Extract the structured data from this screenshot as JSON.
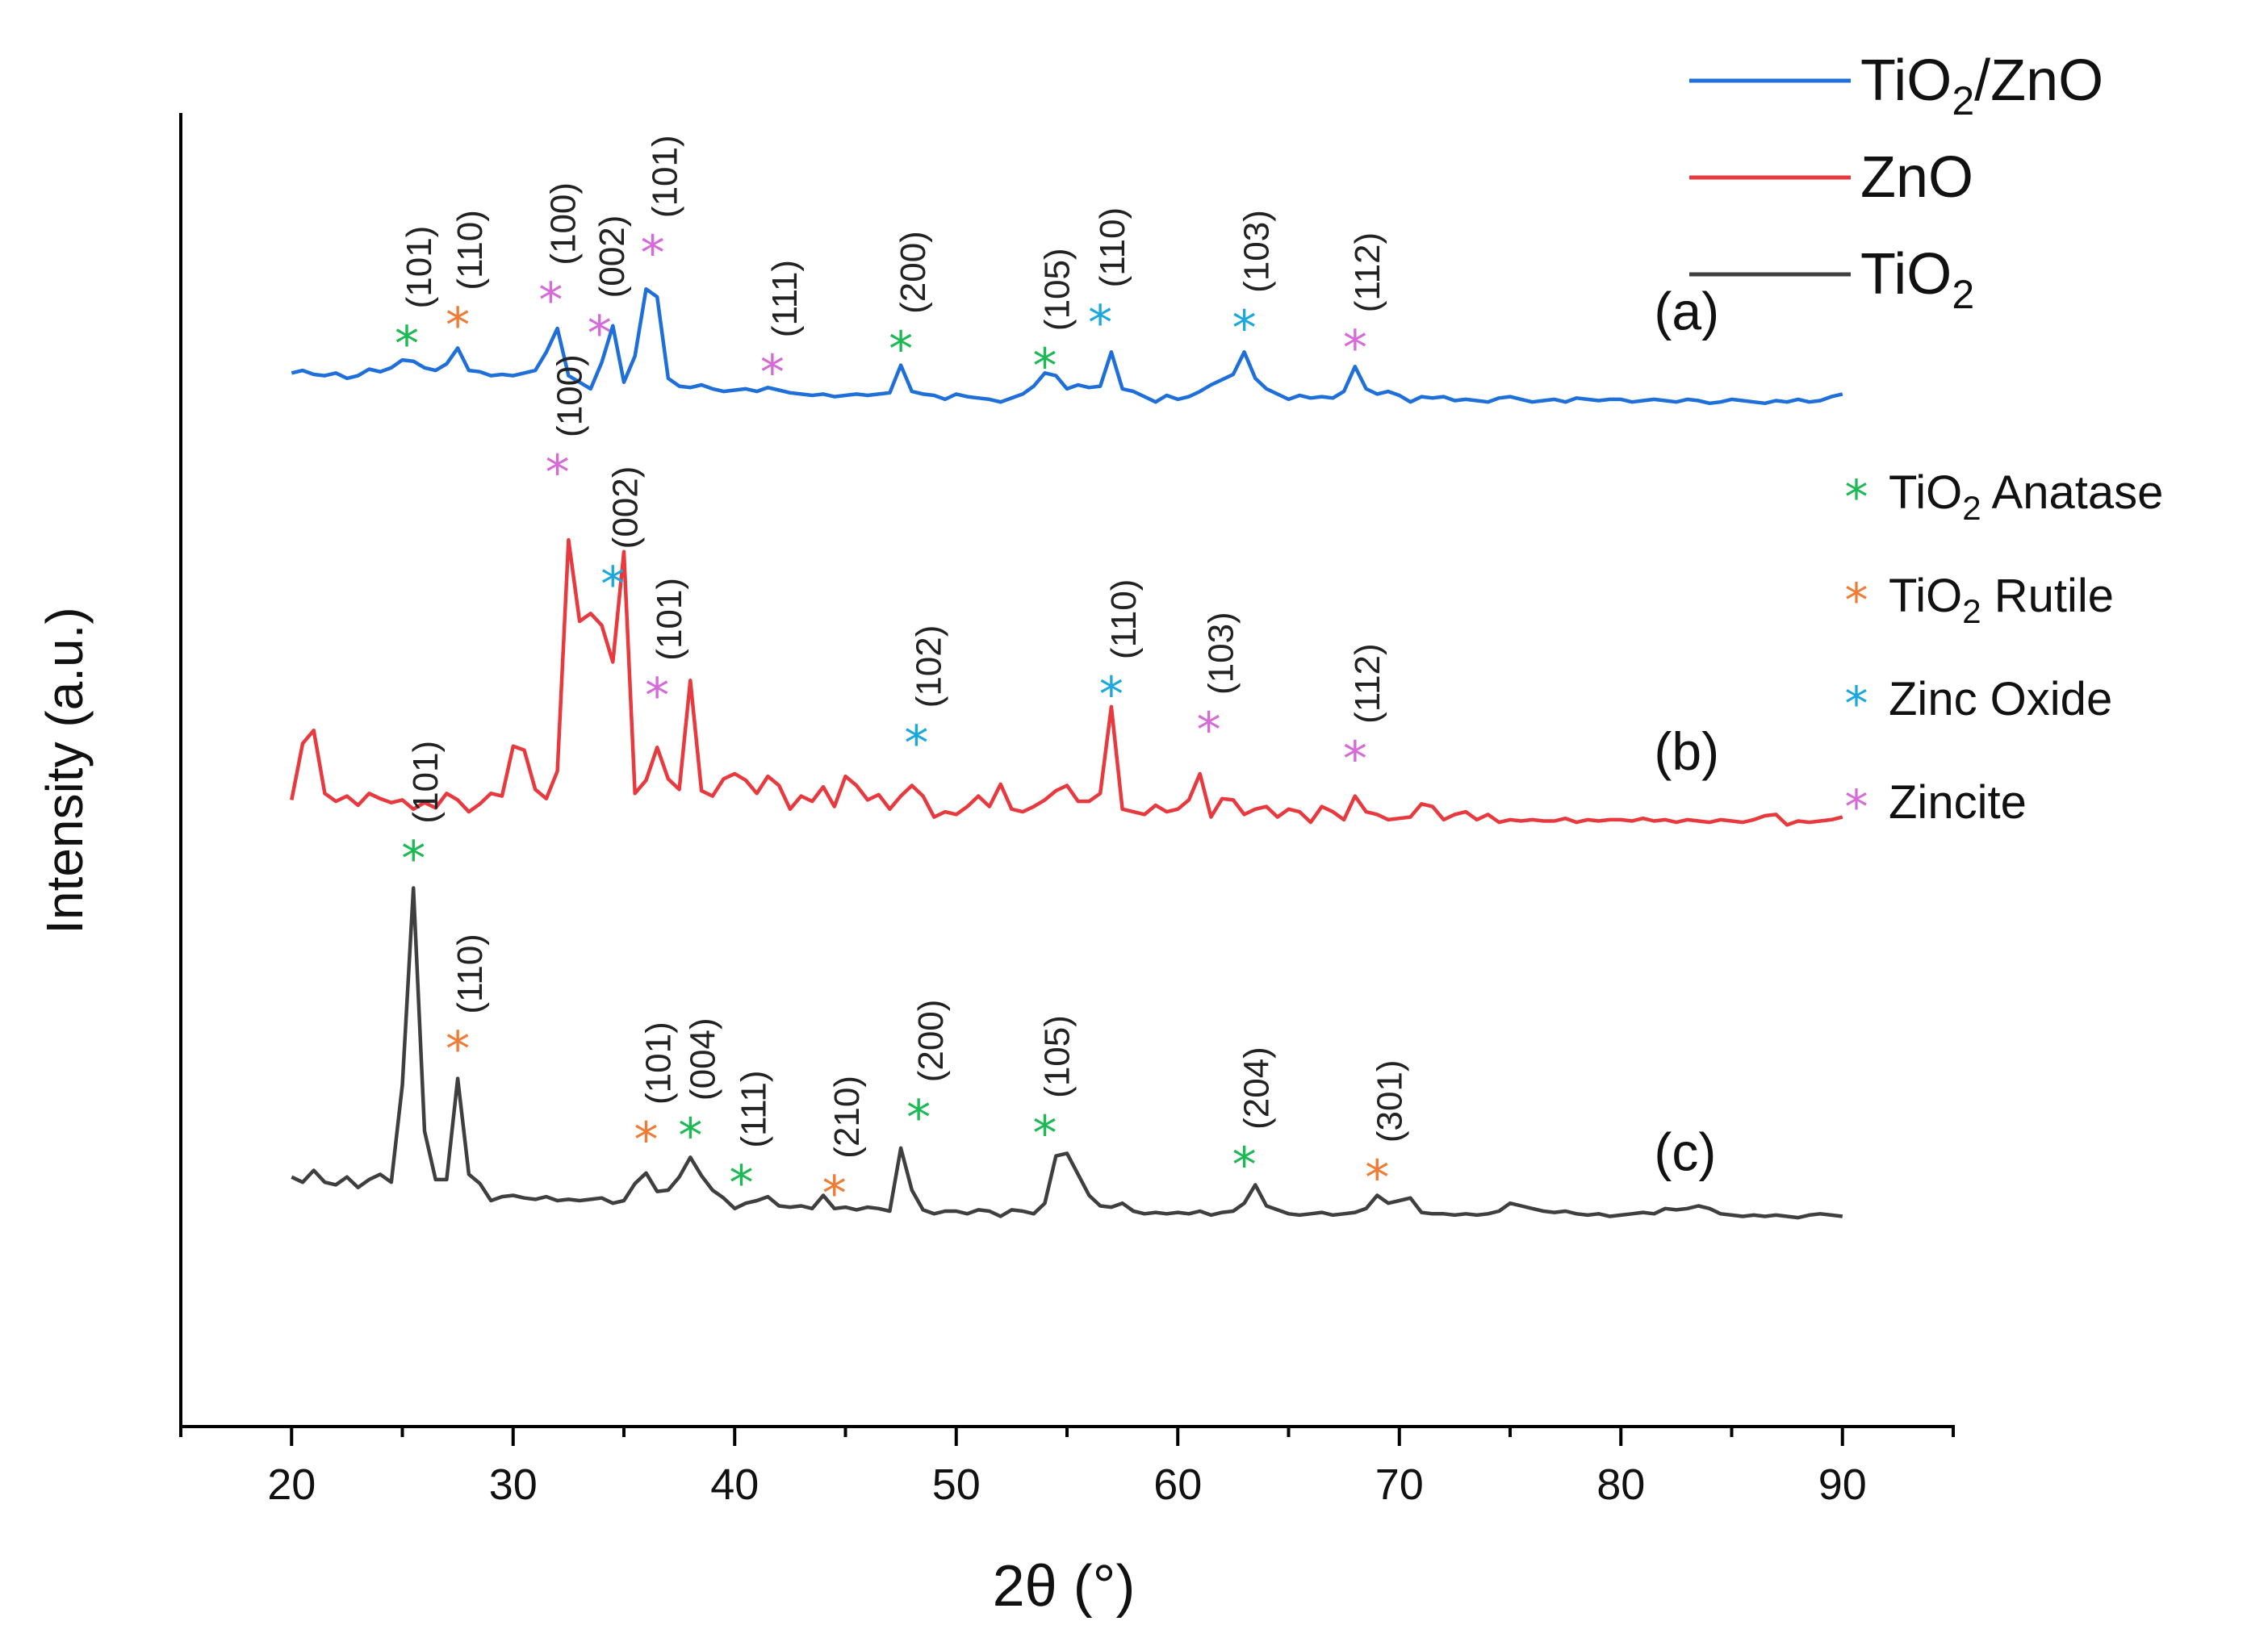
{
  "chart_data": {
    "type": "line",
    "title": "",
    "xlabel": "2θ (°)",
    "ylabel": "Intensity (a.u.)",
    "xlim": [
      15,
      95
    ],
    "ylim": [
      0,
      10
    ],
    "xticks": [
      20,
      30,
      40,
      50,
      60,
      70,
      80,
      90
    ],
    "grid": false,
    "legend_position": "top-right",
    "series": [
      {
        "name": "TiO2/ZnO",
        "legend_main": "TiO",
        "legend_sub": "2",
        "legend_tail": "/ZnO",
        "color": "#1f6fdb",
        "panel_label": "(a)",
        "x": [
          20,
          20.5,
          21,
          21.5,
          22,
          22.5,
          23,
          23.5,
          24,
          24.5,
          25,
          25.5,
          26,
          26.5,
          27,
          27.5,
          28,
          28.5,
          29,
          29.5,
          30,
          30.5,
          31,
          31.5,
          32,
          32.5,
          33,
          33.5,
          34,
          34.5,
          35,
          35.5,
          36,
          36.5,
          37,
          37.5,
          38,
          38.5,
          39,
          39.5,
          40,
          40.5,
          41,
          41.5,
          42,
          42.5,
          43,
          43.5,
          44,
          44.5,
          45,
          45.5,
          46,
          46.5,
          47,
          47.5,
          48,
          48.5,
          49,
          49.5,
          50,
          50.5,
          51,
          51.5,
          52,
          52.5,
          53,
          53.5,
          54,
          54.5,
          55,
          55.5,
          56,
          56.5,
          57,
          57.5,
          58,
          58.5,
          59,
          59.5,
          60,
          60.5,
          61,
          61.5,
          62,
          62.5,
          63,
          63.5,
          64,
          64.5,
          65,
          65.5,
          66,
          66.5,
          67,
          67.5,
          68,
          68.5,
          69,
          69.5,
          70,
          70.5,
          71,
          71.5,
          72,
          72.5,
          73,
          73.5,
          74,
          74.5,
          75,
          75.5,
          76,
          76.5,
          77,
          77.5,
          78,
          78.5,
          79,
          79.5,
          80,
          80.5,
          81,
          81.5,
          82,
          82.5,
          83,
          83.5,
          84,
          84.5,
          85,
          85.5,
          86,
          86.5,
          87,
          87.5,
          88,
          88.5,
          89,
          89.5,
          90
        ],
        "y": [
          8.02,
          8.04,
          8.01,
          8.0,
          8.02,
          7.98,
          8.0,
          8.05,
          8.03,
          8.06,
          8.12,
          8.11,
          8.06,
          8.04,
          8.09,
          8.21,
          8.04,
          8.03,
          8.0,
          8.01,
          8.0,
          8.02,
          8.04,
          8.18,
          8.36,
          8.0,
          7.95,
          7.9,
          8.1,
          8.38,
          7.95,
          8.15,
          8.66,
          8.6,
          7.98,
          7.92,
          7.91,
          7.93,
          7.9,
          7.88,
          7.89,
          7.9,
          7.88,
          7.91,
          7.89,
          7.87,
          7.86,
          7.85,
          7.86,
          7.84,
          7.85,
          7.86,
          7.85,
          7.86,
          7.87,
          8.08,
          7.88,
          7.86,
          7.85,
          7.82,
          7.86,
          7.84,
          7.83,
          7.82,
          7.8,
          7.83,
          7.86,
          7.92,
          8.02,
          8.0,
          7.9,
          7.93,
          7.91,
          7.92,
          8.18,
          7.9,
          7.88,
          7.84,
          7.8,
          7.85,
          7.82,
          7.84,
          7.88,
          7.93,
          7.97,
          8.01,
          8.18,
          7.98,
          7.9,
          7.86,
          7.82,
          7.85,
          7.83,
          7.84,
          7.83,
          7.88,
          8.07,
          7.9,
          7.86,
          7.88,
          7.85,
          7.8,
          7.84,
          7.83,
          7.84,
          7.81,
          7.82,
          7.81,
          7.8,
          7.83,
          7.84,
          7.82,
          7.8,
          7.81,
          7.82,
          7.8,
          7.83,
          7.82,
          7.81,
          7.82,
          7.82,
          7.8,
          7.81,
          7.82,
          7.81,
          7.8,
          7.82,
          7.81,
          7.79,
          7.8,
          7.82,
          7.81,
          7.8,
          7.79,
          7.81,
          7.8,
          7.82,
          7.8,
          7.81,
          7.84,
          7.86
        ]
      },
      {
        "name": "ZnO",
        "legend_main": "ZnO",
        "legend_sub": "",
        "legend_tail": "",
        "color": "#e8393e",
        "panel_label": "(b)",
        "x": [
          20,
          20.5,
          21,
          21.5,
          22,
          22.5,
          23,
          23.5,
          24,
          24.5,
          25,
          25.5,
          26,
          26.5,
          27,
          27.5,
          28,
          28.5,
          29,
          29.5,
          30,
          30.5,
          31,
          31.5,
          32,
          32.5,
          33,
          33.5,
          34,
          34.5,
          35,
          35.5,
          36,
          36.5,
          37,
          37.5,
          38,
          38.5,
          39,
          39.5,
          40,
          40.5,
          41,
          41.5,
          42,
          42.5,
          43,
          43.5,
          44,
          44.5,
          45,
          45.5,
          46,
          46.5,
          47,
          47.5,
          48,
          48.5,
          49,
          49.5,
          50,
          50.5,
          51,
          51.5,
          52,
          52.5,
          53,
          53.5,
          54,
          54.5,
          55,
          55.5,
          56,
          56.5,
          57,
          57.5,
          58,
          58.5,
          59,
          59.5,
          60,
          60.5,
          61,
          61.5,
          62,
          62.5,
          63,
          63.5,
          64,
          64.5,
          65,
          65.5,
          66,
          66.5,
          67,
          67.5,
          68,
          68.5,
          69,
          69.5,
          70,
          70.5,
          71,
          71.5,
          72,
          72.5,
          73,
          73.5,
          74,
          74.5,
          75,
          75.5,
          76,
          76.5,
          77,
          77.5,
          78,
          78.5,
          79,
          79.5,
          80,
          80.5,
          81,
          81.5,
          82,
          82.5,
          83,
          83.5,
          84,
          84.5,
          85,
          85.5,
          86,
          86.5,
          87,
          87.5,
          88,
          88.5,
          89,
          89.5,
          90
        ],
        "y": [
          4.77,
          5.2,
          5.3,
          4.82,
          4.76,
          4.8,
          4.73,
          4.82,
          4.78,
          4.75,
          4.77,
          4.7,
          4.75,
          4.71,
          4.82,
          4.77,
          4.68,
          4.74,
          4.82,
          4.8,
          5.18,
          5.15,
          4.85,
          4.78,
          4.99,
          6.75,
          6.13,
          6.19,
          6.1,
          5.82,
          6.66,
          4.82,
          4.92,
          5.17,
          4.93,
          4.85,
          5.68,
          4.84,
          4.8,
          4.93,
          4.97,
          4.92,
          4.82,
          4.95,
          4.88,
          4.7,
          4.8,
          4.76,
          4.87,
          4.72,
          4.95,
          4.88,
          4.77,
          4.81,
          4.7,
          4.8,
          4.88,
          4.8,
          4.64,
          4.68,
          4.66,
          4.72,
          4.8,
          4.72,
          4.89,
          4.7,
          4.68,
          4.72,
          4.77,
          4.84,
          4.88,
          4.76,
          4.76,
          4.82,
          5.48,
          4.7,
          4.68,
          4.66,
          4.73,
          4.68,
          4.7,
          4.77,
          4.97,
          4.64,
          4.78,
          4.77,
          4.66,
          4.7,
          4.72,
          4.64,
          4.7,
          4.68,
          4.6,
          4.72,
          4.68,
          4.62,
          4.8,
          4.68,
          4.66,
          4.62,
          4.63,
          4.64,
          4.74,
          4.72,
          4.62,
          4.66,
          4.68,
          4.62,
          4.66,
          4.6,
          4.62,
          4.61,
          4.62,
          4.61,
          4.61,
          4.63,
          4.6,
          4.62,
          4.61,
          4.62,
          4.62,
          4.61,
          4.63,
          4.61,
          4.62,
          4.6,
          4.62,
          4.61,
          4.6,
          4.62,
          4.61,
          4.6,
          4.62,
          4.65,
          4.66,
          4.58,
          4.61,
          4.6,
          4.61,
          4.62,
          4.64
        ]
      },
      {
        "name": "TiO2",
        "legend_main": "TiO",
        "legend_sub": "2",
        "legend_tail": "",
        "color": "#3f3f3f",
        "panel_label": "(c)",
        "x": [
          20,
          20.5,
          21,
          21.5,
          22,
          22.5,
          23,
          23.5,
          24,
          24.5,
          25,
          25.5,
          26,
          26.5,
          27,
          27.5,
          28,
          28.5,
          29,
          29.5,
          30,
          30.5,
          31,
          31.5,
          32,
          32.5,
          33,
          33.5,
          34,
          34.5,
          35,
          35.5,
          36,
          36.5,
          37,
          37.5,
          38,
          38.5,
          39,
          39.5,
          40,
          40.5,
          41,
          41.5,
          42,
          42.5,
          43,
          43.5,
          44,
          44.5,
          45,
          45.5,
          46,
          46.5,
          47,
          47.5,
          48,
          48.5,
          49,
          49.5,
          50,
          50.5,
          51,
          51.5,
          52,
          52.5,
          53,
          53.5,
          54,
          54.5,
          55,
          55.5,
          56,
          56.5,
          57,
          57.5,
          58,
          58.5,
          59,
          59.5,
          60,
          60.5,
          61,
          61.5,
          62,
          62.5,
          63,
          63.5,
          64,
          64.5,
          65,
          65.5,
          66,
          66.5,
          67,
          67.5,
          68,
          68.5,
          69,
          69.5,
          70,
          70.5,
          71,
          71.5,
          72,
          72.5,
          73,
          73.5,
          74,
          74.5,
          75,
          75.5,
          76,
          76.5,
          77,
          77.5,
          78,
          78.5,
          79,
          79.5,
          80,
          80.5,
          81,
          81.5,
          82,
          82.5,
          83,
          83.5,
          84,
          84.5,
          85,
          85.5,
          86,
          86.5,
          87,
          87.5,
          88,
          88.5,
          89,
          89.5,
          90
        ],
        "y": [
          1.9,
          1.86,
          1.95,
          1.86,
          1.84,
          1.9,
          1.82,
          1.88,
          1.92,
          1.86,
          2.6,
          4.1,
          2.25,
          1.88,
          1.88,
          2.65,
          1.92,
          1.85,
          1.72,
          1.75,
          1.76,
          1.74,
          1.73,
          1.75,
          1.72,
          1.73,
          1.72,
          1.73,
          1.74,
          1.7,
          1.72,
          1.85,
          1.93,
          1.79,
          1.8,
          1.9,
          2.05,
          1.91,
          1.8,
          1.74,
          1.66,
          1.7,
          1.72,
          1.75,
          1.68,
          1.67,
          1.68,
          1.66,
          1.76,
          1.66,
          1.67,
          1.65,
          1.67,
          1.66,
          1.64,
          2.12,
          1.8,
          1.65,
          1.62,
          1.64,
          1.64,
          1.62,
          1.65,
          1.64,
          1.6,
          1.65,
          1.64,
          1.62,
          1.7,
          2.06,
          2.08,
          1.92,
          1.76,
          1.68,
          1.67,
          1.7,
          1.64,
          1.62,
          1.63,
          1.62,
          1.63,
          1.62,
          1.64,
          1.61,
          1.63,
          1.64,
          1.7,
          1.84,
          1.68,
          1.65,
          1.62,
          1.61,
          1.62,
          1.63,
          1.61,
          1.62,
          1.63,
          1.66,
          1.76,
          1.7,
          1.72,
          1.74,
          1.63,
          1.62,
          1.62,
          1.61,
          1.62,
          1.61,
          1.62,
          1.64,
          1.7,
          1.68,
          1.66,
          1.64,
          1.63,
          1.64,
          1.62,
          1.61,
          1.62,
          1.6,
          1.61,
          1.62,
          1.63,
          1.62,
          1.66,
          1.65,
          1.66,
          1.68,
          1.66,
          1.62,
          1.61,
          1.6,
          1.61,
          1.6,
          1.61,
          1.6,
          1.59,
          1.61,
          1.62,
          1.61,
          1.6
        ]
      }
    ],
    "markers": [
      {
        "kind": "anatase",
        "x": 25.2,
        "y": 8.29,
        "label": "(101)"
      },
      {
        "kind": "rutile",
        "x": 27.5,
        "y": 8.43,
        "label": "(110)"
      },
      {
        "kind": "zincite",
        "x": 31.7,
        "y": 8.62,
        "label": "(100)"
      },
      {
        "kind": "zincite",
        "x": 33.9,
        "y": 8.37,
        "label": "(002)"
      },
      {
        "kind": "zincite",
        "x": 36.3,
        "y": 8.98,
        "label": "(101)"
      },
      {
        "kind": "zincite",
        "x": 41.7,
        "y": 8.07,
        "label": "(111)"
      },
      {
        "kind": "anatase",
        "x": 47.5,
        "y": 8.25,
        "label": "(200)"
      },
      {
        "kind": "anatase",
        "x": 54.0,
        "y": 8.12,
        "label": "(105)"
      },
      {
        "kind": "zincoxide",
        "x": 56.5,
        "y": 8.45,
        "label": "(110)"
      },
      {
        "kind": "zincoxide",
        "x": 63.0,
        "y": 8.41,
        "label": "(103)"
      },
      {
        "kind": "zincite",
        "x": 68.0,
        "y": 8.26,
        "label": "(112)"
      },
      {
        "kind": "zincite",
        "x": 32.0,
        "y": 7.31,
        "label": "(100)"
      },
      {
        "kind": "zincoxide",
        "x": 34.5,
        "y": 6.46,
        "label": "(002)"
      },
      {
        "kind": "zincite",
        "x": 36.5,
        "y": 5.61,
        "label": "(101)"
      },
      {
        "kind": "zincoxide",
        "x": 48.2,
        "y": 5.25,
        "label": "(102)"
      },
      {
        "kind": "zincoxide",
        "x": 57.0,
        "y": 5.62,
        "label": "(110)"
      },
      {
        "kind": "zincite",
        "x": 61.4,
        "y": 5.35,
        "label": "(103)"
      },
      {
        "kind": "zincite",
        "x": 68.0,
        "y": 5.13,
        "label": "(112)"
      },
      {
        "kind": "anatase",
        "x": 25.5,
        "y": 4.37,
        "label": "(101)"
      },
      {
        "kind": "rutile",
        "x": 27.5,
        "y": 2.92,
        "label": "(110)"
      },
      {
        "kind": "rutile",
        "x": 36.0,
        "y": 2.23,
        "label": "(101)"
      },
      {
        "kind": "anatase",
        "x": 38.0,
        "y": 2.26,
        "label": "(004)"
      },
      {
        "kind": "anatase",
        "x": 40.3,
        "y": 1.9,
        "label": "(111)"
      },
      {
        "kind": "rutile",
        "x": 44.5,
        "y": 1.82,
        "label": "(210)"
      },
      {
        "kind": "anatase",
        "x": 48.3,
        "y": 2.4,
        "label": "(200)"
      },
      {
        "kind": "anatase",
        "x": 54.0,
        "y": 2.28,
        "label": "(105)"
      },
      {
        "kind": "anatase",
        "x": 63.0,
        "y": 2.04,
        "label": "(204)"
      },
      {
        "kind": "rutile",
        "x": 69.0,
        "y": 1.94,
        "label": "(301)"
      }
    ],
    "phase_legend": [
      {
        "kind": "anatase",
        "color": "#1db954",
        "main": "TiO",
        "sub": "2",
        "tail": " Anatase"
      },
      {
        "kind": "rutile",
        "color": "#f07b34",
        "main": "TiO",
        "sub": "2",
        "tail": " Rutile"
      },
      {
        "kind": "zincoxide",
        "color": "#1aa8dd",
        "main": "Zinc Oxide",
        "sub": "",
        "tail": ""
      },
      {
        "kind": "zincite",
        "color": "#d56ad8",
        "main": "Zincite",
        "sub": "",
        "tail": ""
      }
    ],
    "marker_glyph": "*"
  }
}
